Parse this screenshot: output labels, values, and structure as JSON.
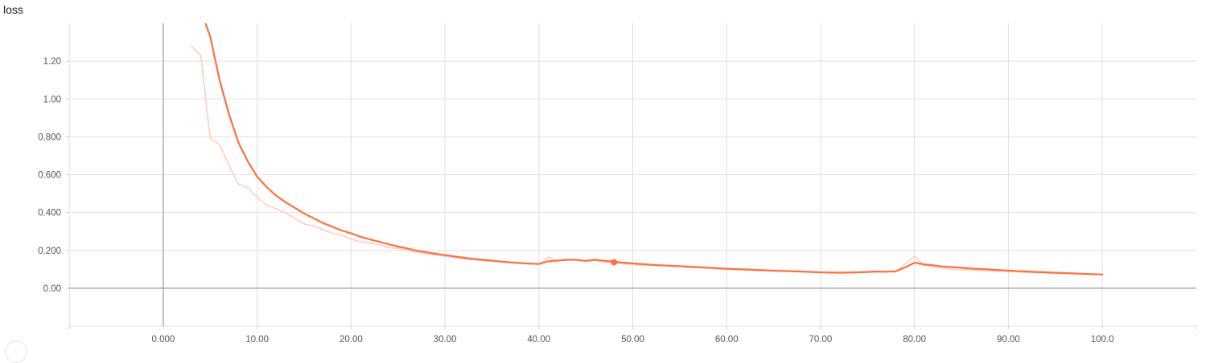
{
  "title": "loss",
  "chart_data": {
    "type": "line",
    "title": "loss",
    "xlabel": "",
    "ylabel": "",
    "xlim": [
      -10,
      110
    ],
    "ylim": [
      -0.2,
      1.4
    ],
    "grid": true,
    "x_ticks": [
      {
        "value": 0,
        "label": "0.000"
      },
      {
        "value": 10,
        "label": "10.00"
      },
      {
        "value": 20,
        "label": "20.00"
      },
      {
        "value": 30,
        "label": "30.00"
      },
      {
        "value": 40,
        "label": "40.00"
      },
      {
        "value": 50,
        "label": "50.00"
      },
      {
        "value": 60,
        "label": "60.00"
      },
      {
        "value": 70,
        "label": "70.00"
      },
      {
        "value": 80,
        "label": "80.00"
      },
      {
        "value": 90,
        "label": "90.00"
      },
      {
        "value": 100,
        "label": "100.0"
      }
    ],
    "y_ticks": [
      {
        "value": 0,
        "label": "0.00"
      },
      {
        "value": 0.2,
        "label": "0.200"
      },
      {
        "value": 0.4,
        "label": "0.400"
      },
      {
        "value": 0.6,
        "label": "0.600"
      },
      {
        "value": 0.8,
        "label": "0.800"
      },
      {
        "value": 1.0,
        "label": "1.00"
      },
      {
        "value": 1.2,
        "label": "1.20"
      }
    ],
    "colors": {
      "smoothed": "#ff7043",
      "raw": "#ffcdbf",
      "grid": "#e0e0e0",
      "axis": "#999999"
    },
    "series": [
      {
        "role": "raw",
        "x": [
          3,
          4,
          5,
          6,
          7,
          8,
          9,
          10,
          11,
          12,
          13,
          14,
          15,
          16,
          17,
          18,
          19,
          20,
          21,
          22,
          23,
          24,
          25,
          26,
          27,
          28,
          29,
          30,
          31,
          32,
          33,
          34,
          35,
          36,
          37,
          38,
          39,
          40,
          41,
          42,
          43,
          44,
          45,
          46,
          47,
          48,
          49,
          50,
          52,
          54,
          56,
          58,
          60,
          62,
          64,
          66,
          68,
          70,
          72,
          74,
          76,
          78,
          80,
          81,
          82,
          83,
          84,
          85,
          86,
          88,
          90,
          92,
          94,
          96,
          98,
          100
        ],
        "y": [
          1.28,
          1.23,
          0.79,
          0.76,
          0.65,
          0.55,
          0.53,
          0.48,
          0.44,
          0.42,
          0.4,
          0.37,
          0.34,
          0.33,
          0.31,
          0.29,
          0.28,
          0.26,
          0.245,
          0.24,
          0.23,
          0.215,
          0.21,
          0.2,
          0.19,
          0.18,
          0.175,
          0.17,
          0.162,
          0.156,
          0.15,
          0.146,
          0.142,
          0.138,
          0.134,
          0.13,
          0.128,
          0.127,
          0.165,
          0.145,
          0.155,
          0.15,
          0.14,
          0.148,
          0.138,
          0.135,
          0.13,
          0.125,
          0.12,
          0.115,
          0.11,
          0.105,
          0.1,
          0.096,
          0.092,
          0.09,
          0.087,
          0.085,
          0.083,
          0.085,
          0.09,
          0.085,
          0.17,
          0.12,
          0.115,
          0.105,
          0.1,
          0.098,
          0.097,
          0.092,
          0.088,
          0.084,
          0.08,
          0.077,
          0.074,
          0.072
        ]
      },
      {
        "role": "smoothed",
        "x": [
          4.5,
          5,
          6,
          7,
          8,
          9,
          10,
          11,
          12,
          13,
          14,
          15,
          16,
          17,
          18,
          19,
          20,
          21,
          22,
          23,
          24,
          25,
          26,
          27,
          28,
          29,
          30,
          31,
          32,
          33,
          34,
          35,
          36,
          37,
          38,
          39,
          40,
          41,
          42,
          43,
          44,
          45,
          46,
          47,
          48,
          49,
          50,
          52,
          54,
          56,
          58,
          60,
          62,
          64,
          66,
          68,
          70,
          72,
          74,
          76,
          77,
          78,
          79,
          80,
          81,
          82,
          83,
          84,
          85,
          86,
          88,
          90,
          92,
          94,
          96,
          98,
          100
        ],
        "y": [
          1.4,
          1.33,
          1.1,
          0.92,
          0.77,
          0.67,
          0.59,
          0.535,
          0.49,
          0.455,
          0.425,
          0.395,
          0.37,
          0.345,
          0.325,
          0.305,
          0.29,
          0.272,
          0.258,
          0.245,
          0.232,
          0.22,
          0.21,
          0.198,
          0.19,
          0.182,
          0.175,
          0.168,
          0.161,
          0.155,
          0.15,
          0.146,
          0.141,
          0.137,
          0.133,
          0.13,
          0.128,
          0.142,
          0.146,
          0.15,
          0.15,
          0.145,
          0.15,
          0.145,
          0.14,
          0.135,
          0.131,
          0.124,
          0.119,
          0.114,
          0.109,
          0.103,
          0.099,
          0.095,
          0.091,
          0.088,
          0.084,
          0.082,
          0.084,
          0.088,
          0.087,
          0.09,
          0.11,
          0.135,
          0.126,
          0.121,
          0.115,
          0.112,
          0.108,
          0.104,
          0.099,
          0.093,
          0.088,
          0.084,
          0.08,
          0.076,
          0.072
        ]
      }
    ],
    "highlight_point": {
      "x": 48,
      "y": 0.137
    }
  }
}
